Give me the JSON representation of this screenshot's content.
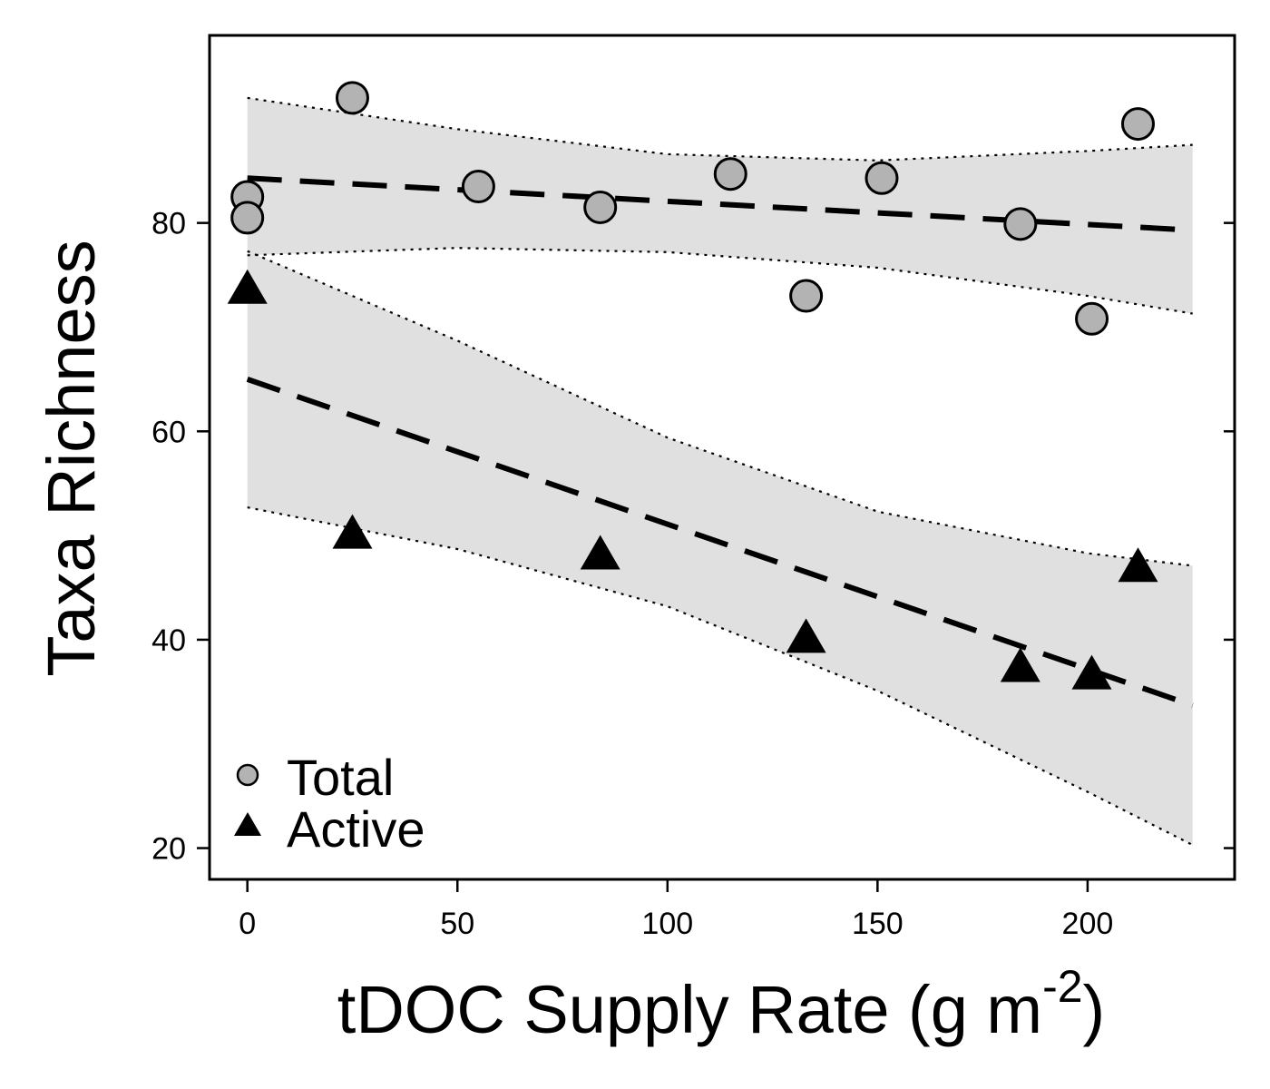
{
  "chart_data": {
    "type": "scatter",
    "xlabel": "tDOC Supply Rate (g m",
    "xlabel_superscript": "-2",
    "xlabel_close": ")",
    "ylabel": "Taxa Richness",
    "xlim": [
      -9,
      235
    ],
    "ylim": [
      17,
      98
    ],
    "xticks": [
      0,
      50,
      100,
      150,
      200
    ],
    "yticks": [
      20,
      40,
      60,
      80
    ],
    "grid": false,
    "legend_position": "bottom-left",
    "series": [
      {
        "name": "Total",
        "marker": "circle",
        "color": "#b3b3b3",
        "points": [
          {
            "x": 0,
            "y": 82.5
          },
          {
            "x": 0,
            "y": 80.5
          },
          {
            "x": 25,
            "y": 92.0
          },
          {
            "x": 55,
            "y": 83.5
          },
          {
            "x": 84,
            "y": 81.5
          },
          {
            "x": 115,
            "y": 84.7
          },
          {
            "x": 133,
            "y": 73.0
          },
          {
            "x": 151,
            "y": 84.3
          },
          {
            "x": 184,
            "y": 79.9
          },
          {
            "x": 201,
            "y": 70.8
          },
          {
            "x": 212,
            "y": 89.5
          }
        ],
        "fit": {
          "x": [
            0,
            225
          ],
          "y": [
            84.3,
            79.3
          ]
        },
        "band_upper": [
          {
            "x": 0,
            "y": 92.0
          },
          {
            "x": 50,
            "y": 89.0
          },
          {
            "x": 100,
            "y": 86.6
          },
          {
            "x": 150,
            "y": 86.0
          },
          {
            "x": 200,
            "y": 86.9
          },
          {
            "x": 225,
            "y": 87.5
          }
        ],
        "band_lower": [
          {
            "x": 0,
            "y": 76.9
          },
          {
            "x": 50,
            "y": 77.6
          },
          {
            "x": 100,
            "y": 77.2
          },
          {
            "x": 150,
            "y": 75.7
          },
          {
            "x": 200,
            "y": 73.0
          },
          {
            "x": 225,
            "y": 71.3
          }
        ]
      },
      {
        "name": "Active",
        "marker": "triangle",
        "color": "#000000",
        "points": [
          {
            "x": 0,
            "y": 73.5
          },
          {
            "x": 25,
            "y": 50.0
          },
          {
            "x": 84,
            "y": 48.0
          },
          {
            "x": 133,
            "y": 40.0
          },
          {
            "x": 184,
            "y": 37.2
          },
          {
            "x": 201,
            "y": 36.5
          },
          {
            "x": 212,
            "y": 46.8
          }
        ],
        "fit": {
          "x": [
            0,
            225
          ],
          "y": [
            65.0,
            33.7
          ]
        },
        "band_upper": [
          {
            "x": 0,
            "y": 77.3
          },
          {
            "x": 50,
            "y": 68.7
          },
          {
            "x": 100,
            "y": 59.4
          },
          {
            "x": 150,
            "y": 52.3
          },
          {
            "x": 200,
            "y": 48.3
          },
          {
            "x": 225,
            "y": 47.1
          }
        ],
        "band_lower": [
          {
            "x": 0,
            "y": 52.7
          },
          {
            "x": 50,
            "y": 48.7
          },
          {
            "x": 100,
            "y": 43.2
          },
          {
            "x": 150,
            "y": 35.1
          },
          {
            "x": 200,
            "y": 25.4
          },
          {
            "x": 225,
            "y": 20.3
          }
        ]
      }
    ]
  }
}
